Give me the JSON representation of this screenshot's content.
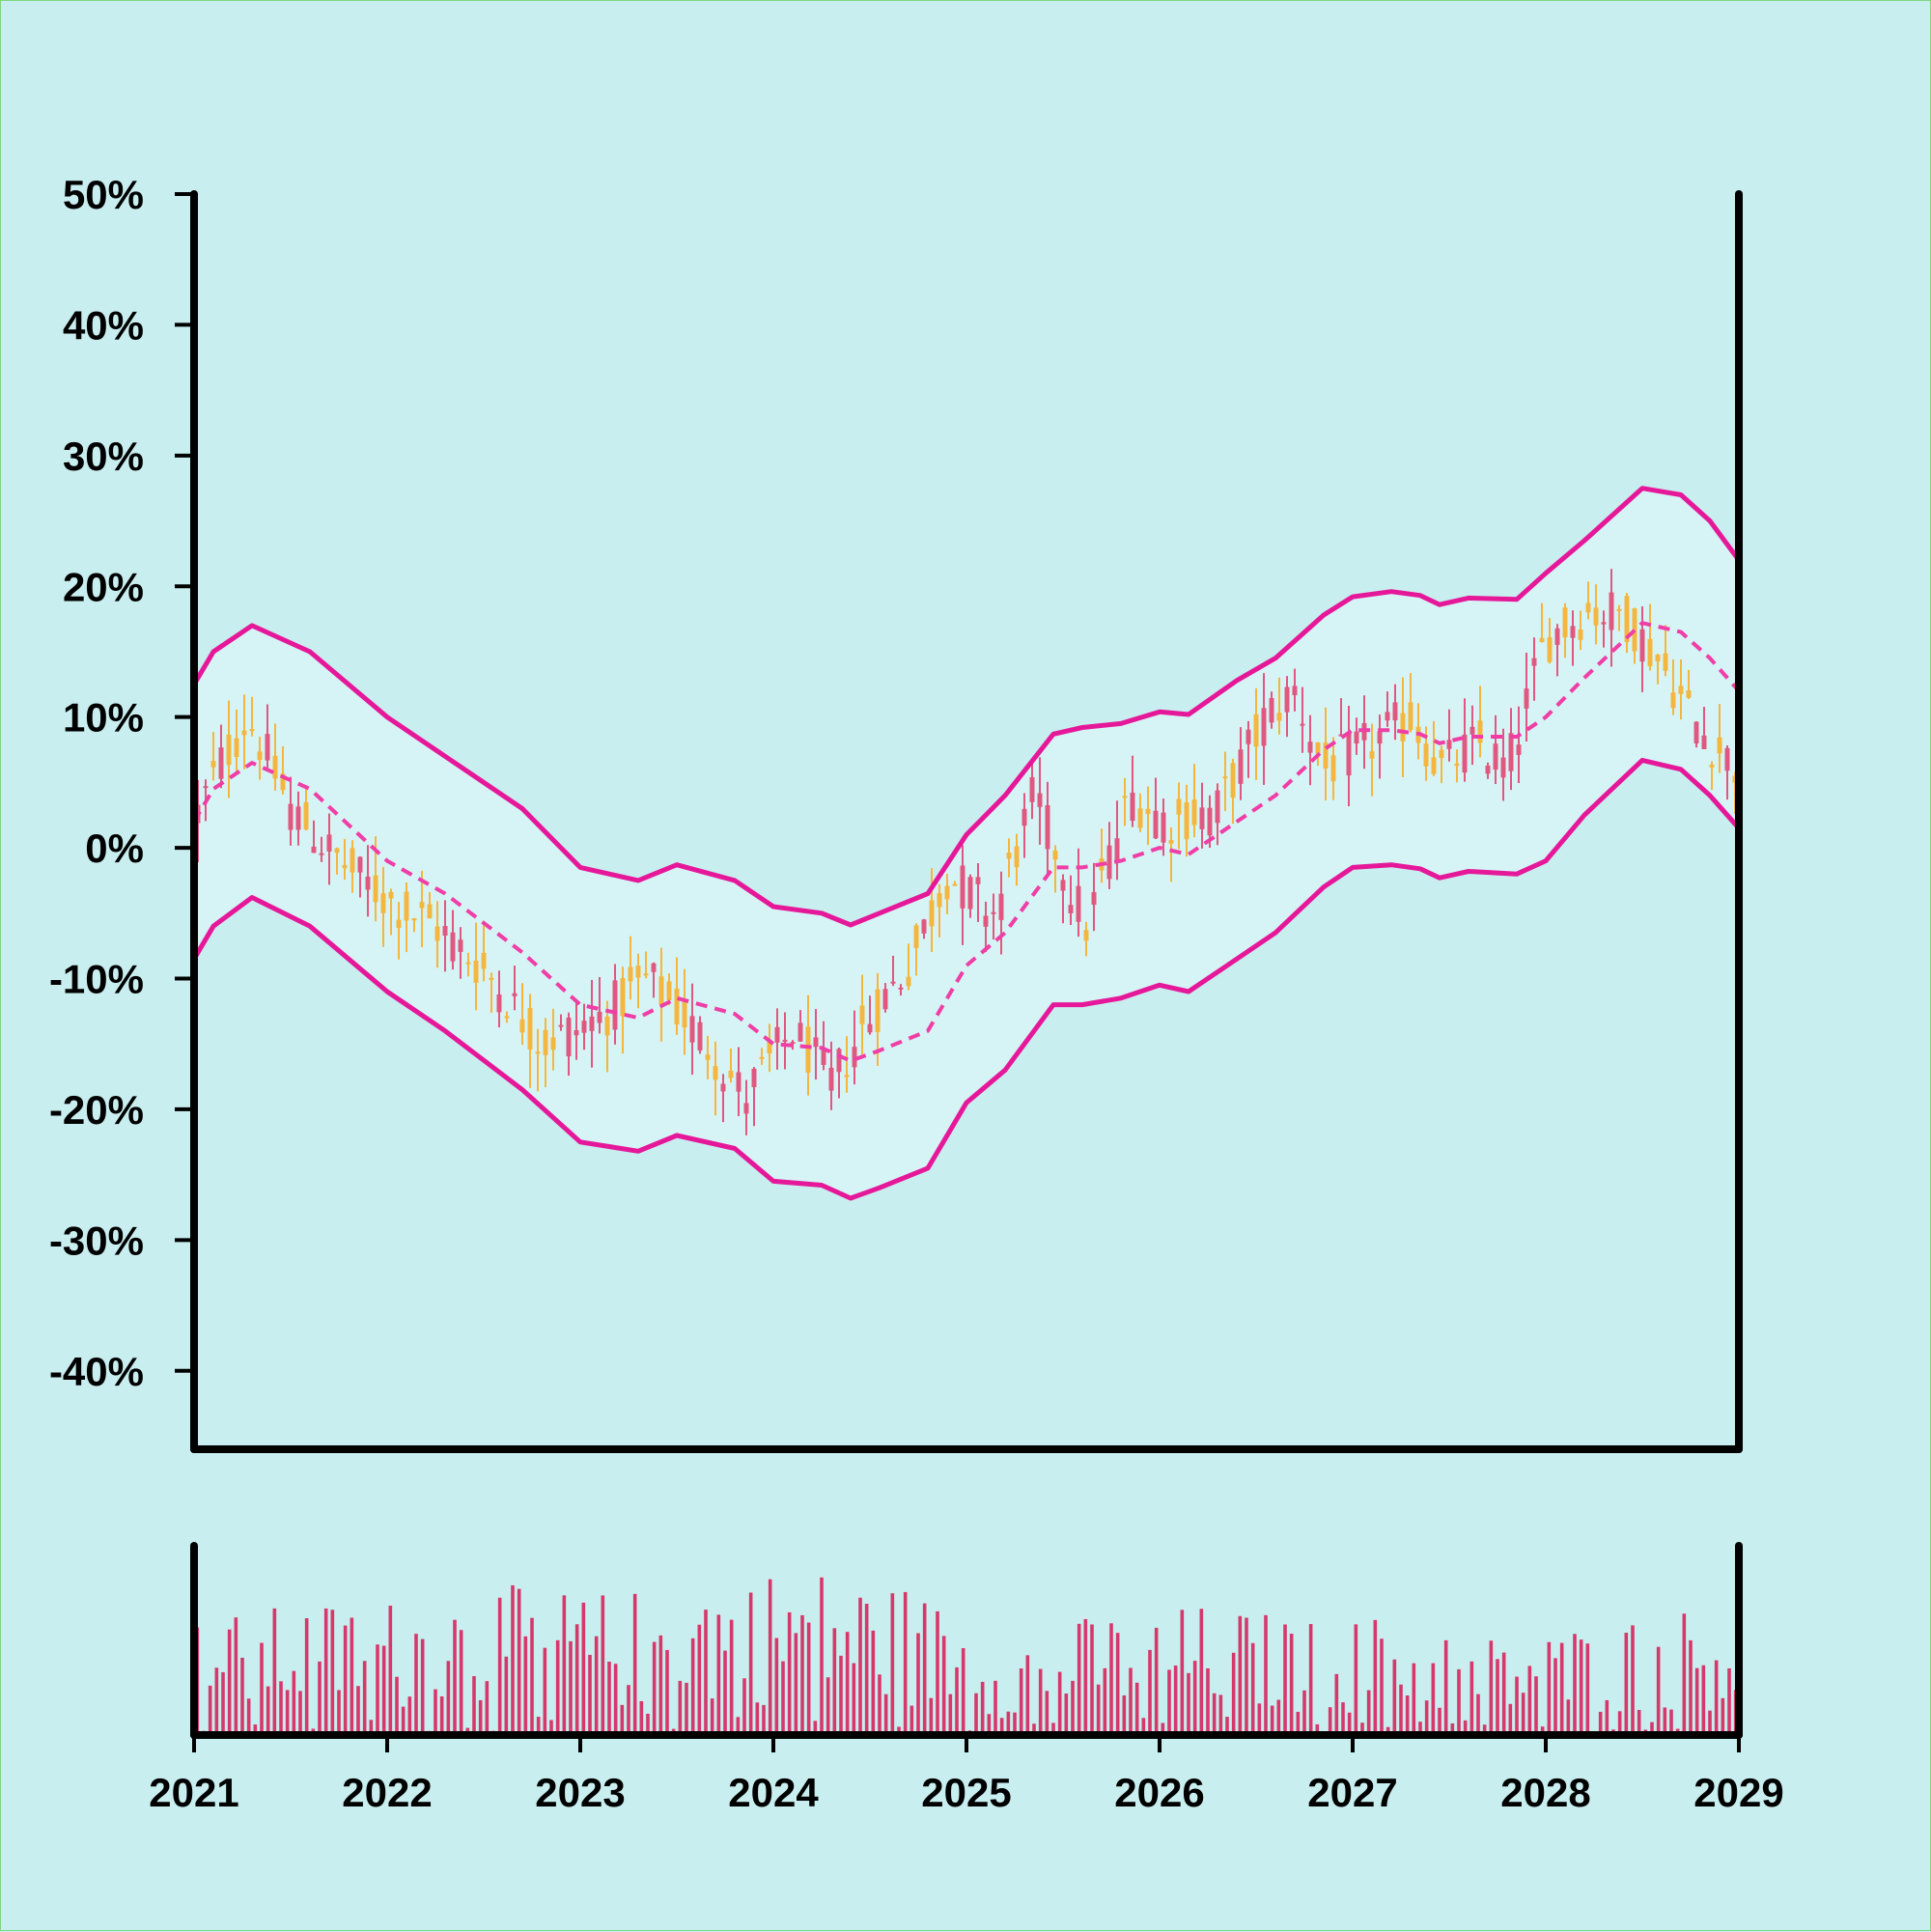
{
  "colors": {
    "background": "#c9eeef",
    "band_fill": "#d6f4f5",
    "band_line": "#e6189a",
    "middle_line": "#ef3ea6",
    "candle_up": "#f4b63f",
    "candle_down": "#e0577f",
    "volume_bar": "#d6386b",
    "axis": "#000000",
    "frame_border": "#7ed67e"
  },
  "chart_data": {
    "type": "candlestick",
    "title": "",
    "xlabel": "",
    "ylabel": "",
    "x_axis": {
      "range": [
        2021,
        2029
      ],
      "ticks": [
        "2021",
        "2022",
        "2023",
        "2024",
        "2025",
        "2026",
        "2027",
        "2028",
        "2029"
      ]
    },
    "y_axis": {
      "range": [
        -46,
        50
      ],
      "unit": "%",
      "ticks": [
        "50%",
        "40%",
        "30%",
        "20%",
        "10%",
        "0%",
        "-10%",
        "-20%",
        "-30%",
        "-40%"
      ]
    },
    "grid": false,
    "legend": "none",
    "overlays": [
      "bollinger_upper",
      "bollinger_middle (dashed)",
      "bollinger_lower",
      "band_fill"
    ],
    "price_trend": [
      {
        "x": 2021.0,
        "y": 2
      },
      {
        "x": 2021.12,
        "y": 6
      },
      {
        "x": 2021.28,
        "y": 10
      },
      {
        "x": 2021.5,
        "y": 3
      },
      {
        "x": 2021.75,
        "y": -1
      },
      {
        "x": 2022.0,
        "y": -4
      },
      {
        "x": 2022.25,
        "y": -6
      },
      {
        "x": 2022.55,
        "y": -10
      },
      {
        "x": 2022.8,
        "y": -15
      },
      {
        "x": 2023.1,
        "y": -13
      },
      {
        "x": 2023.35,
        "y": -10
      },
      {
        "x": 2023.6,
        "y": -14
      },
      {
        "x": 2023.85,
        "y": -19
      },
      {
        "x": 2024.1,
        "y": -14
      },
      {
        "x": 2024.3,
        "y": -18
      },
      {
        "x": 2024.5,
        "y": -13
      },
      {
        "x": 2024.7,
        "y": -9
      },
      {
        "x": 2024.9,
        "y": -2
      },
      {
        "x": 2025.15,
        "y": -5
      },
      {
        "x": 2025.35,
        "y": 4
      },
      {
        "x": 2025.62,
        "y": -6
      },
      {
        "x": 2025.85,
        "y": 4
      },
      {
        "x": 2026.05,
        "y": 2
      },
      {
        "x": 2026.3,
        "y": 3
      },
      {
        "x": 2026.55,
        "y": 10
      },
      {
        "x": 2026.7,
        "y": 12
      },
      {
        "x": 2026.85,
        "y": 6
      },
      {
        "x": 2027.1,
        "y": 8
      },
      {
        "x": 2027.3,
        "y": 10
      },
      {
        "x": 2027.45,
        "y": 6
      },
      {
        "x": 2027.65,
        "y": 8
      },
      {
        "x": 2027.8,
        "y": 6
      },
      {
        "x": 2028.0,
        "y": 16
      },
      {
        "x": 2028.2,
        "y": 18
      },
      {
        "x": 2028.4,
        "y": 18
      },
      {
        "x": 2028.6,
        "y": 14
      },
      {
        "x": 2028.8,
        "y": 9
      },
      {
        "x": 2029.0,
        "y": 6
      }
    ],
    "bollinger_upper": [
      {
        "x": 2021.0,
        "y": 12.5
      },
      {
        "x": 2021.1,
        "y": 15
      },
      {
        "x": 2021.3,
        "y": 17
      },
      {
        "x": 2021.6,
        "y": 15
      },
      {
        "x": 2022.0,
        "y": 10
      },
      {
        "x": 2022.3,
        "y": 7
      },
      {
        "x": 2022.7,
        "y": 3
      },
      {
        "x": 2023.0,
        "y": -1.5
      },
      {
        "x": 2023.3,
        "y": -2.5
      },
      {
        "x": 2023.5,
        "y": -1.3
      },
      {
        "x": 2023.8,
        "y": -2.5
      },
      {
        "x": 2024.0,
        "y": -4.5
      },
      {
        "x": 2024.25,
        "y": -5
      },
      {
        "x": 2024.4,
        "y": -5.9
      },
      {
        "x": 2024.55,
        "y": -5
      },
      {
        "x": 2024.8,
        "y": -3.5
      },
      {
        "x": 2025.0,
        "y": 1
      },
      {
        "x": 2025.2,
        "y": 4
      },
      {
        "x": 2025.45,
        "y": 8.7
      },
      {
        "x": 2025.6,
        "y": 9.2
      },
      {
        "x": 2025.8,
        "y": 9.5
      },
      {
        "x": 2026.0,
        "y": 10.4
      },
      {
        "x": 2026.15,
        "y": 10.2
      },
      {
        "x": 2026.4,
        "y": 12.8
      },
      {
        "x": 2026.6,
        "y": 14.5
      },
      {
        "x": 2026.85,
        "y": 17.8
      },
      {
        "x": 2027.0,
        "y": 19.2
      },
      {
        "x": 2027.2,
        "y": 19.6
      },
      {
        "x": 2027.35,
        "y": 19.3
      },
      {
        "x": 2027.45,
        "y": 18.6
      },
      {
        "x": 2027.6,
        "y": 19.1
      },
      {
        "x": 2027.85,
        "y": 19.0
      },
      {
        "x": 2028.0,
        "y": 21
      },
      {
        "x": 2028.2,
        "y": 23.5
      },
      {
        "x": 2028.5,
        "y": 27.5
      },
      {
        "x": 2028.7,
        "y": 27
      },
      {
        "x": 2028.85,
        "y": 25
      },
      {
        "x": 2029.0,
        "y": 22
      }
    ],
    "bollinger_middle": [
      {
        "x": 2021.0,
        "y": 2
      },
      {
        "x": 2021.1,
        "y": 4.5
      },
      {
        "x": 2021.3,
        "y": 6.5
      },
      {
        "x": 2021.6,
        "y": 4.5
      },
      {
        "x": 2022.0,
        "y": -1
      },
      {
        "x": 2022.3,
        "y": -3.5
      },
      {
        "x": 2022.7,
        "y": -8
      },
      {
        "x": 2023.0,
        "y": -12
      },
      {
        "x": 2023.3,
        "y": -13
      },
      {
        "x": 2023.5,
        "y": -11.5
      },
      {
        "x": 2023.8,
        "y": -12.7
      },
      {
        "x": 2024.0,
        "y": -15
      },
      {
        "x": 2024.25,
        "y": -15.3
      },
      {
        "x": 2024.4,
        "y": -16.3
      },
      {
        "x": 2024.55,
        "y": -15.5
      },
      {
        "x": 2024.8,
        "y": -14
      },
      {
        "x": 2025.0,
        "y": -9
      },
      {
        "x": 2025.2,
        "y": -6.5
      },
      {
        "x": 2025.45,
        "y": -1.5
      },
      {
        "x": 2025.6,
        "y": -1.5
      },
      {
        "x": 2025.8,
        "y": -1
      },
      {
        "x": 2026.0,
        "y": 0
      },
      {
        "x": 2026.15,
        "y": -0.5
      },
      {
        "x": 2026.4,
        "y": 2
      },
      {
        "x": 2026.6,
        "y": 4
      },
      {
        "x": 2026.85,
        "y": 7.5
      },
      {
        "x": 2027.0,
        "y": 9
      },
      {
        "x": 2027.2,
        "y": 9
      },
      {
        "x": 2027.35,
        "y": 8.7
      },
      {
        "x": 2027.45,
        "y": 8.0
      },
      {
        "x": 2027.6,
        "y": 8.5
      },
      {
        "x": 2027.85,
        "y": 8.5
      },
      {
        "x": 2028.0,
        "y": 10
      },
      {
        "x": 2028.2,
        "y": 13
      },
      {
        "x": 2028.5,
        "y": 17.2
      },
      {
        "x": 2028.7,
        "y": 16.5
      },
      {
        "x": 2028.85,
        "y": 14.5
      },
      {
        "x": 2029.0,
        "y": 12
      }
    ],
    "bollinger_lower": [
      {
        "x": 2021.0,
        "y": -8.5
      },
      {
        "x": 2021.1,
        "y": -6
      },
      {
        "x": 2021.3,
        "y": -3.8
      },
      {
        "x": 2021.6,
        "y": -6
      },
      {
        "x": 2022.0,
        "y": -11
      },
      {
        "x": 2022.3,
        "y": -14
      },
      {
        "x": 2022.7,
        "y": -18.5
      },
      {
        "x": 2023.0,
        "y": -22.5
      },
      {
        "x": 2023.3,
        "y": -23.2
      },
      {
        "x": 2023.5,
        "y": -22
      },
      {
        "x": 2023.8,
        "y": -23
      },
      {
        "x": 2024.0,
        "y": -25.5
      },
      {
        "x": 2024.25,
        "y": -25.8
      },
      {
        "x": 2024.4,
        "y": -26.8
      },
      {
        "x": 2024.55,
        "y": -26
      },
      {
        "x": 2024.8,
        "y": -24.5
      },
      {
        "x": 2025.0,
        "y": -19.5
      },
      {
        "x": 2025.2,
        "y": -17
      },
      {
        "x": 2025.45,
        "y": -12
      },
      {
        "x": 2025.6,
        "y": -12
      },
      {
        "x": 2025.8,
        "y": -11.5
      },
      {
        "x": 2026.0,
        "y": -10.5
      },
      {
        "x": 2026.15,
        "y": -11
      },
      {
        "x": 2026.4,
        "y": -8.5
      },
      {
        "x": 2026.6,
        "y": -6.5
      },
      {
        "x": 2026.85,
        "y": -3
      },
      {
        "x": 2027.0,
        "y": -1.5
      },
      {
        "x": 2027.2,
        "y": -1.3
      },
      {
        "x": 2027.35,
        "y": -1.6
      },
      {
        "x": 2027.45,
        "y": -2.3
      },
      {
        "x": 2027.6,
        "y": -1.8
      },
      {
        "x": 2027.85,
        "y": -2
      },
      {
        "x": 2028.0,
        "y": -1
      },
      {
        "x": 2028.2,
        "y": 2.5
      },
      {
        "x": 2028.5,
        "y": 6.7
      },
      {
        "x": 2028.7,
        "y": 6
      },
      {
        "x": 2028.85,
        "y": 4
      },
      {
        "x": 2029.0,
        "y": 1.5
      }
    ],
    "volume_profile": [
      {
        "x": 2021.0,
        "v": 0.42
      },
      {
        "x": 2021.5,
        "v": 0.48
      },
      {
        "x": 2022.0,
        "v": 0.5
      },
      {
        "x": 2022.6,
        "v": 0.55
      },
      {
        "x": 2023.2,
        "v": 0.52
      },
      {
        "x": 2023.7,
        "v": 0.6
      },
      {
        "x": 2024.2,
        "v": 0.62
      },
      {
        "x": 2024.7,
        "v": 0.55
      },
      {
        "x": 2025.2,
        "v": 0.35
      },
      {
        "x": 2025.7,
        "v": 0.45
      },
      {
        "x": 2026.3,
        "v": 0.48
      },
      {
        "x": 2026.8,
        "v": 0.42
      },
      {
        "x": 2027.3,
        "v": 0.45
      },
      {
        "x": 2027.8,
        "v": 0.35
      },
      {
        "x": 2028.3,
        "v": 0.42
      },
      {
        "x": 2029.0,
        "v": 0.5
      }
    ]
  }
}
